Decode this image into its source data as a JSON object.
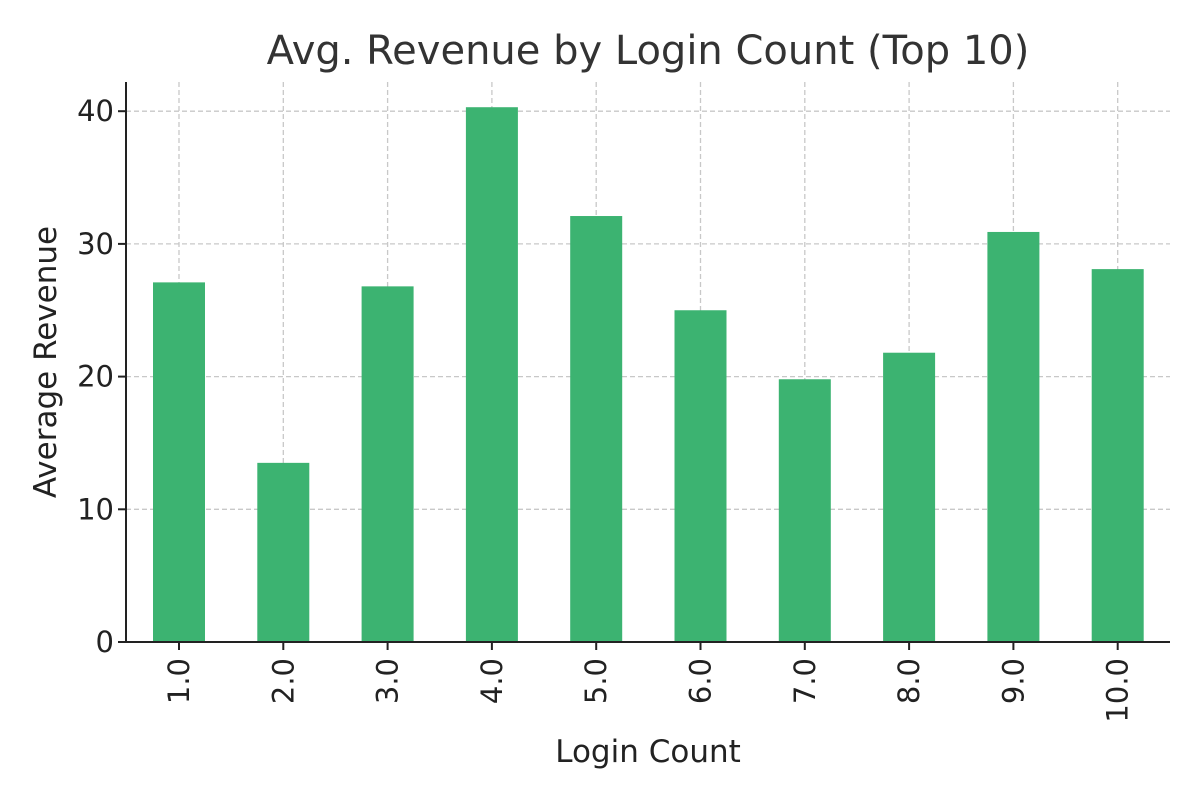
{
  "chart_data": {
    "type": "bar",
    "title": "Avg. Revenue by Login Count (Top 10)",
    "xlabel": "Login Count",
    "ylabel": "Average Revenue",
    "categories": [
      "1.0",
      "2.0",
      "3.0",
      "4.0",
      "5.0",
      "6.0",
      "7.0",
      "8.0",
      "9.0",
      "10.0"
    ],
    "values": [
      27.1,
      13.5,
      26.8,
      40.3,
      32.1,
      25.0,
      19.8,
      21.8,
      30.9,
      28.1
    ],
    "ylim": [
      0,
      42.2
    ],
    "yticks": [
      "0",
      "10",
      "20",
      "30",
      "40"
    ],
    "grid": true,
    "bar_color": "#3cb371"
  }
}
